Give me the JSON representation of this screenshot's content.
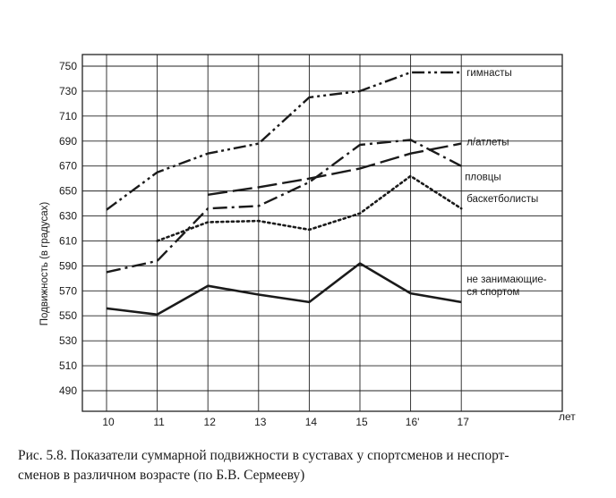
{
  "caption": {
    "line1": "Рис. 5.8. Показатели суммарной подвижности в суставах у спортсменов и неспорт-",
    "line2": "сменов в различном возрасте (по Б.В. Сермееву)"
  },
  "chart_data": {
    "type": "line",
    "title": "",
    "xlabel": "лет",
    "ylabel": "Подвижность (в градусах)",
    "x": [
      10,
      11,
      12,
      13,
      14,
      15,
      16,
      17
    ],
    "x_tick_labels": [
      "10",
      "11",
      "12",
      "13",
      "14",
      "15",
      "16'",
      "17"
    ],
    "y_ticks": [
      490,
      510,
      530,
      550,
      570,
      590,
      610,
      630,
      650,
      670,
      690,
      710,
      730,
      750
    ],
    "ylim": [
      470,
      760
    ],
    "grid": true,
    "legend": "labels at line ends",
    "series": [
      {
        "name": "гимнасты",
        "style": "dash-dot-dot",
        "points": [
          [
            10,
            635
          ],
          [
            11,
            665
          ],
          [
            12,
            680
          ],
          [
            13,
            688
          ],
          [
            14,
            725
          ],
          [
            15,
            730
          ],
          [
            16,
            745
          ],
          [
            17,
            745
          ]
        ]
      },
      {
        "name": "л/атлеты",
        "style": "long-dash",
        "points": [
          [
            12,
            647
          ],
          [
            13,
            653
          ],
          [
            14,
            660
          ],
          [
            15,
            668
          ],
          [
            16,
            680
          ],
          [
            17,
            688
          ]
        ]
      },
      {
        "name": "пловцы",
        "style": "dash-dot",
        "points": [
          [
            10,
            585
          ],
          [
            11,
            594
          ],
          [
            12,
            636
          ],
          [
            13,
            638
          ],
          [
            14,
            657
          ],
          [
            15,
            687
          ],
          [
            16,
            691
          ],
          [
            17,
            670
          ]
        ]
      },
      {
        "name": "баскетболисты",
        "style": "dotted",
        "points": [
          [
            11,
            610
          ],
          [
            12,
            625
          ],
          [
            13,
            626
          ],
          [
            14,
            619
          ],
          [
            15,
            632
          ],
          [
            16,
            662
          ],
          [
            17,
            636
          ]
        ]
      },
      {
        "name": "не занимающие-\nся спортом",
        "style": "solid",
        "points": [
          [
            10,
            556
          ],
          [
            11,
            551
          ],
          [
            12,
            574
          ],
          [
            13,
            567
          ],
          [
            14,
            561
          ],
          [
            15,
            592
          ],
          [
            16,
            568
          ],
          [
            17,
            561
          ]
        ]
      }
    ],
    "colors": {
      "line": "#1a1a1a",
      "grid": "#222222",
      "background": "#ffffff"
    }
  }
}
